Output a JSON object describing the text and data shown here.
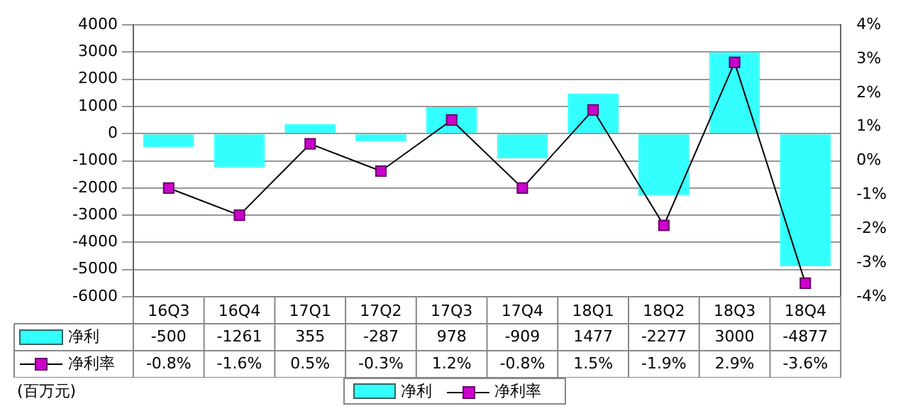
{
  "chart_data": {
    "type": "bar",
    "categories": [
      "16Q3",
      "16Q4",
      "17Q1",
      "17Q2",
      "17Q3",
      "17Q4",
      "18Q1",
      "18Q2",
      "18Q3",
      "18Q4"
    ],
    "series": [
      {
        "name": "净利",
        "color": "#33ffff",
        "values": [
          -500,
          -1261,
          355,
          -287,
          978,
          -909,
          1477,
          -2277,
          3000,
          -4877
        ],
        "value_labels": [
          "-500",
          "-1261",
          "355",
          "-287",
          "978",
          "-909",
          "1477",
          "-2277",
          "3000",
          "-4877"
        ]
      },
      {
        "name": "净利率",
        "type": "line",
        "axis": "y2",
        "color": "#cc00cc",
        "marker": "square",
        "values": [
          -0.8,
          -1.6,
          0.5,
          -0.3,
          1.2,
          -0.8,
          1.5,
          -1.9,
          2.9,
          -3.6
        ],
        "value_labels": [
          "-0.8%",
          "-1.6%",
          "0.5%",
          "-0.3%",
          "1.2%",
          "-0.8%",
          "1.5%",
          "-1.9%",
          "2.9%",
          "-3.6%"
        ]
      }
    ],
    "ylim": [
      -6000,
      4000
    ],
    "yticks": [
      -6000,
      -5000,
      -4000,
      -3000,
      -2000,
      -1000,
      0,
      1000,
      2000,
      3000,
      4000
    ],
    "y2lim": [
      -4,
      4
    ],
    "y2ticks": [
      {
        "value": -4,
        "label": "-4%"
      },
      {
        "value": -3,
        "label": "-3%"
      },
      {
        "value": -2,
        "label": "-2%"
      },
      {
        "value": -1,
        "label": "-1%"
      },
      {
        "value": 0,
        "label": "0%"
      },
      {
        "value": 1,
        "label": "1%"
      },
      {
        "value": 2,
        "label": "2%"
      },
      {
        "value": 3,
        "label": "3%"
      },
      {
        "value": 4,
        "label": "4%"
      }
    ],
    "grid": "y",
    "legend": "bottom",
    "annotations": [
      "(百万元)"
    ]
  }
}
